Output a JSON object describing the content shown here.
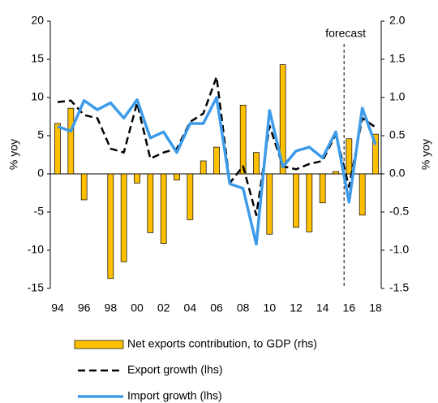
{
  "chart_data": {
    "type": "combo",
    "categories": [
      "94",
      null,
      "96",
      null,
      "98",
      null,
      "00",
      null,
      "02",
      null,
      "04",
      null,
      "06",
      null,
      "08",
      null,
      "10",
      null,
      "12",
      null,
      "14",
      null,
      "16",
      null,
      "18"
    ],
    "series": [
      {
        "name": "Net exports contribution, to GDP (rhs)",
        "type": "bar",
        "axis": "y2",
        "color": "#ffc000",
        "values": [
          0.66,
          0.86,
          -0.34,
          0.0,
          -1.37,
          -1.15,
          -0.12,
          -0.77,
          -0.91,
          -0.08,
          -0.6,
          0.17,
          0.35,
          0.0,
          0.9,
          0.28,
          -0.79,
          1.43,
          -0.7,
          -0.76,
          -0.38,
          0.03,
          0.46,
          -0.54,
          0.52
        ]
      },
      {
        "name": "Export growth (lhs)",
        "type": "line",
        "style": "dashed",
        "color": "#000000",
        "values": [
          9.4,
          9.6,
          7.7,
          7.3,
          3.3,
          2.8,
          9.3,
          2.0,
          2.8,
          3.3,
          6.8,
          7.9,
          12.7,
          -1.2,
          1.0,
          -5.4,
          6.3,
          1.0,
          0.6,
          1.3,
          1.7,
          5.2,
          -1.7,
          7.3,
          6.1
        ]
      },
      {
        "name": "Import growth (lhs)",
        "type": "line",
        "style": "solid",
        "color": "#3d9be9",
        "values": [
          6.2,
          5.6,
          9.6,
          8.4,
          9.3,
          7.3,
          9.7,
          4.7,
          5.5,
          2.8,
          6.6,
          6.6,
          10.0,
          -1.3,
          -1.9,
          -9.2,
          8.3,
          0.9,
          3.0,
          3.5,
          2.1,
          5.5,
          -3.7,
          8.6,
          3.8
        ]
      }
    ],
    "ylabel": "% yoy",
    "y2label": "% yoy",
    "ylim": [
      -15,
      20
    ],
    "yticks": [
      -15,
      -10,
      -5,
      0,
      5,
      10,
      15,
      20
    ],
    "y2lim": [
      -1.5,
      2.0
    ],
    "y2ticks": [
      -1.5,
      {
        "value": -1.0,
        "label": "-1.0"
      },
      -0.5,
      {
        "value": 0.0,
        "label": "0.0"
      },
      0.5,
      {
        "value": 1.0,
        "label": "1.0"
      },
      1.5,
      {
        "value": 2.0,
        "label": "2.0"
      }
    ],
    "annotation": "forecast",
    "legend": "bottom"
  }
}
